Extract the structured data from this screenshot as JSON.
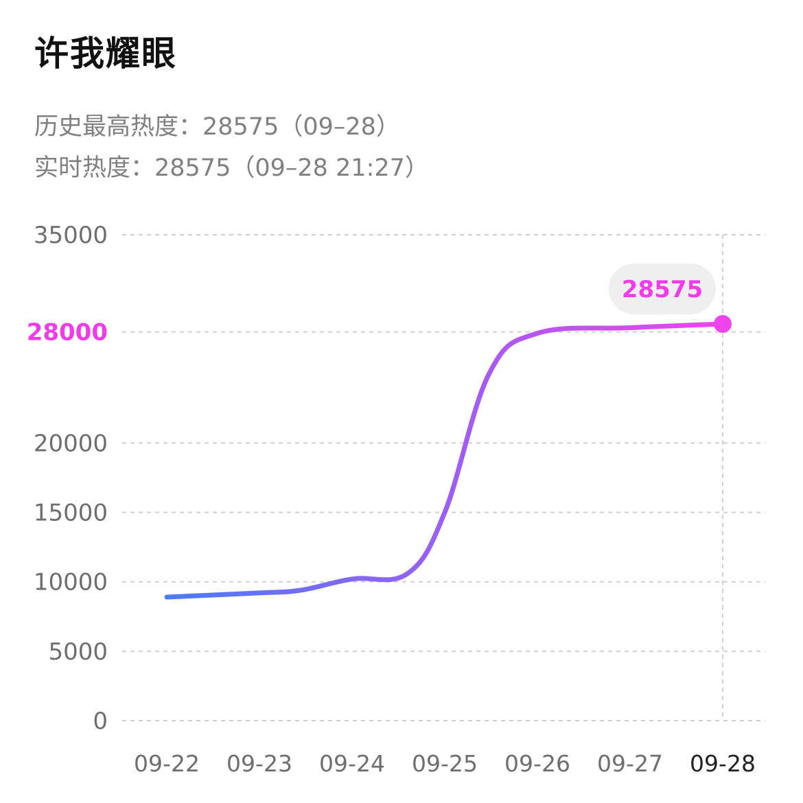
{
  "header": {
    "title": "许我耀眼",
    "peak_line": "历史最高热度：28575（09–28）",
    "realtime_line": "实时热度：28575（09–28 21:27）"
  },
  "colors": {
    "line_start": "#4b7bf5",
    "line_mid": "#a45cf3",
    "line_end": "#ee44ee",
    "highlight": "#f03ce8",
    "axis_text": "#6e6e6e",
    "grid": "#cfcfcf",
    "bubble_bg": "#efefef"
  },
  "chart_data": {
    "type": "line",
    "title": "",
    "xlabel": "",
    "ylabel": "",
    "x": [
      "09-22",
      "09-23",
      "09-24",
      "09-25",
      "09-26",
      "09-27",
      "09-28"
    ],
    "y_ticks": [
      "35000",
      "28000",
      "20000",
      "15000",
      "10000",
      "5000",
      "0"
    ],
    "highlighted_tick": "28000",
    "ylim": [
      0,
      35000
    ],
    "series": [
      {
        "points": [
          {
            "x": "09-22",
            "y": 8900
          },
          {
            "x": "09-23",
            "y": 9200
          },
          {
            "x": "09-23",
            "y": 9400
          },
          {
            "x": "09-24",
            "y": 10200
          },
          {
            "x": "09-24",
            "y": 10600
          },
          {
            "x": "09-25",
            "y": 15000
          },
          {
            "x": "09-25",
            "y": 25000
          },
          {
            "x": "09-26",
            "y": 27900
          },
          {
            "x": "09-27",
            "y": 28300
          },
          {
            "x": "09-28",
            "y": 28575
          }
        ]
      }
    ],
    "annotation": {
      "label": "28575",
      "x": "09-28",
      "y": 28575
    },
    "grid": true,
    "grid_style": "dashed"
  }
}
